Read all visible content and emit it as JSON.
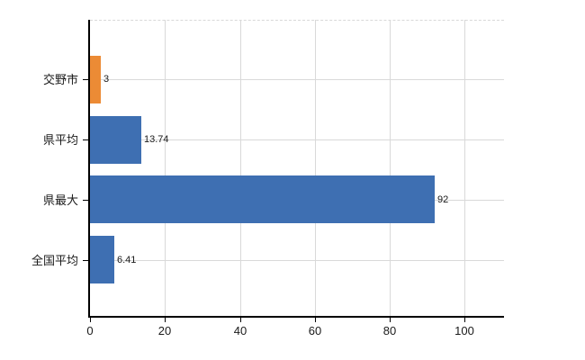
{
  "chart_data": {
    "type": "bar",
    "orientation": "horizontal",
    "title": "",
    "xlabel": "",
    "ylabel": "",
    "categories": [
      "交野市",
      "県平均",
      "県最大",
      "全国平均"
    ],
    "values": [
      3,
      13.74,
      92,
      6.41
    ],
    "value_labels": [
      "3",
      "13.74",
      "92",
      "6.41"
    ],
    "series_colors": [
      "#EC8B35",
      "#3E6FB2",
      "#3E6FB2",
      "#3E6FB2"
    ],
    "xticks": [
      0,
      20,
      40,
      60,
      80,
      100
    ],
    "xlim": [
      0,
      110.5
    ],
    "grid": true,
    "legend": false,
    "colors": {
      "grid": "#D9D9D9",
      "axis": "#000000",
      "text": "#1A1A1A",
      "background": "#FFFFFF"
    }
  }
}
